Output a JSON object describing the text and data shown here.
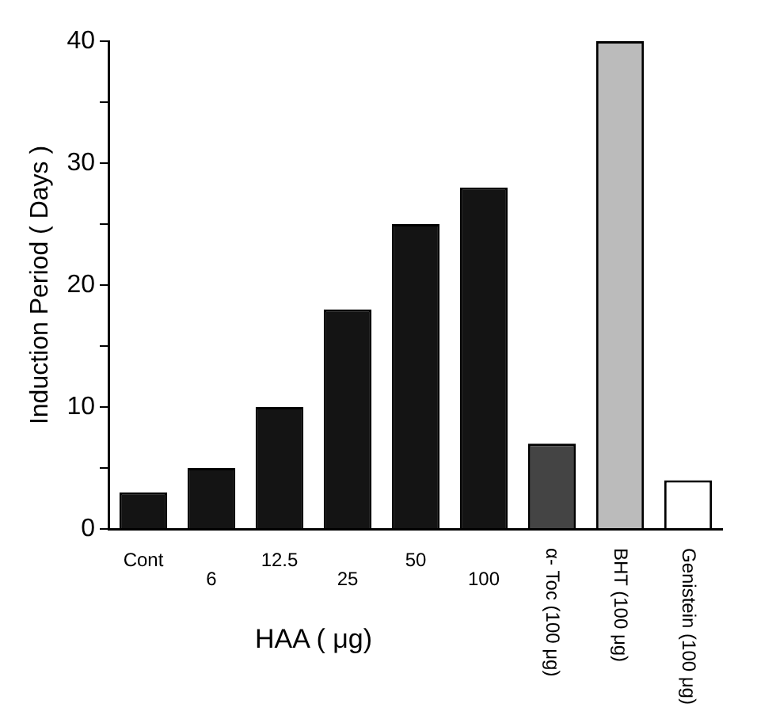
{
  "chart_data": {
    "type": "bar",
    "xlabel": "HAA ( μg)",
    "ylabel": "Induction Period ( Days )",
    "categories": [
      "Cont",
      "6",
      "12.5",
      "25",
      "50",
      "100",
      "α- Toc (100 μg)",
      "BHT (100 μg)",
      "Genistein (100 μg)"
    ],
    "values": [
      3,
      5,
      10,
      18,
      25,
      28,
      7,
      40,
      4
    ],
    "colors": [
      "#141414",
      "#141414",
      "#141414",
      "#141414",
      "#141414",
      "#141414",
      "#444444",
      "#bbbbbb",
      "#ffffff"
    ],
    "ylim": [
      0,
      40
    ],
    "yticks": [
      0,
      {
        "value": 5,
        "label": null
      },
      10,
      {
        "value": 15,
        "label": null
      },
      20,
      {
        "value": 25,
        "label": null
      },
      30,
      {
        "value": 35,
        "label": null
      },
      40
    ],
    "grid": false,
    "legend": false
  }
}
